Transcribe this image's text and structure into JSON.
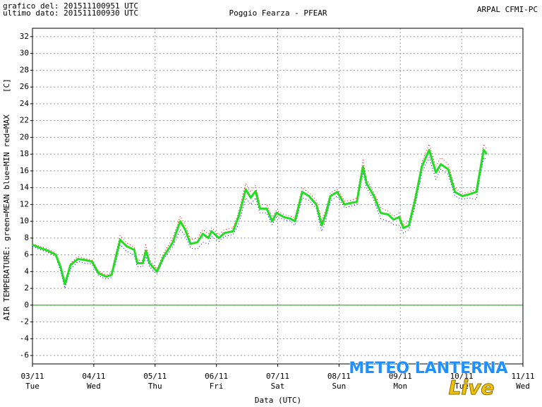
{
  "chart_data": {
    "type": "line",
    "header_left": [
      "grafico del: 201511100951 UTC",
      "ultimo dato: 201511100930 UTC"
    ],
    "title": "Poggio Fearza - PFEAR",
    "header_right": "ARPAL CFMI-PC",
    "unit_label": "[C]",
    "y_label": "AIR TEMPERATURE: green=MEAN  blue=MIN  red=MAX",
    "x_label": "Data (UTC)",
    "watermark": [
      "METEO LANTERNA",
      "Live"
    ],
    "xlim": [
      0,
      8
    ],
    "xticks": [
      {
        "value": 0,
        "label": "03/11"
      },
      {
        "value": 1,
        "label": "04/11"
      },
      {
        "value": 2,
        "label": "05/11"
      },
      {
        "value": 3,
        "label": "06/11"
      },
      {
        "value": 4,
        "label": "07/11"
      },
      {
        "value": 5,
        "label": "08/11"
      },
      {
        "value": 6,
        "label": "09/11"
      },
      {
        "value": 7,
        "label": "10/11"
      },
      {
        "value": 8,
        "label": "11/11"
      }
    ],
    "xtick_weekdays": [
      "Tue",
      "Wed",
      "Thu",
      "Fri",
      "Sat",
      "Sun",
      "Mon",
      "Tue",
      "Wed"
    ],
    "ylim": [
      -7,
      33
    ],
    "yticks": [
      -6,
      -4,
      -2,
      0,
      2,
      4,
      6,
      8,
      10,
      12,
      14,
      16,
      18,
      20,
      22,
      24,
      26,
      28,
      30,
      32
    ],
    "grid": true,
    "reference_line": {
      "value": 0,
      "color": "#00aa00"
    },
    "x": [
      0,
      0.13,
      0.25,
      0.38,
      0.46,
      0.53,
      0.62,
      0.74,
      0.85,
      0.97,
      1.08,
      1.2,
      1.29,
      1.37,
      1.43,
      1.54,
      1.66,
      1.71,
      1.8,
      1.85,
      1.91,
      2.03,
      2.14,
      2.29,
      2.41,
      2.49,
      2.58,
      2.69,
      2.78,
      2.87,
      2.92,
      3.04,
      3.13,
      3.27,
      3.36,
      3.48,
      3.56,
      3.64,
      3.71,
      3.82,
      3.91,
      3.98,
      4.1,
      4.21,
      4.28,
      4.4,
      4.51,
      4.63,
      4.72,
      4.79,
      4.86,
      4.97,
      5.09,
      5.2,
      5.29,
      5.39,
      5.45,
      5.57,
      5.68,
      5.8,
      5.89,
      5.98,
      6.05,
      6.14,
      6.24,
      6.35,
      6.47,
      6.58,
      6.66,
      6.78,
      6.89,
      7.01,
      7.12,
      7.24,
      7.3,
      7.36,
      7.41
    ],
    "series": [
      {
        "name": "MIN",
        "color": "#0000ff",
        "dashed": true,
        "width": 1,
        "values": [
          7.0,
          6.6,
          6.3,
          5.8,
          4.0,
          2.0,
          4.3,
          5.2,
          5.0,
          4.9,
          3.5,
          3.1,
          3.3,
          5.5,
          7.2,
          6.4,
          6.0,
          4.6,
          4.6,
          5.8,
          4.6,
          3.7,
          5.5,
          7.0,
          9.0,
          8.3,
          6.8,
          6.7,
          7.5,
          7.3,
          8.2,
          7.6,
          8.2,
          8.4,
          9.6,
          12.8,
          12.0,
          12.8,
          11.0,
          11.0,
          9.6,
          10.5,
          10.2,
          10.0,
          9.5,
          12.8,
          12.5,
          11.5,
          8.8,
          10.3,
          12.4,
          13.0,
          11.6,
          11.8,
          12.0,
          15.8,
          14.0,
          12.5,
          10.3,
          10.0,
          9.6,
          9.5,
          8.6,
          9.0,
          11.8,
          15.8,
          17.6,
          15.0,
          16.2,
          15.6,
          13.0,
          12.6,
          12.8,
          12.6,
          15.3,
          17.6,
          17.3
        ]
      },
      {
        "name": "MAX",
        "color": "#ff0000",
        "dashed": true,
        "width": 1,
        "values": [
          7.3,
          7.0,
          6.7,
          6.2,
          4.8,
          2.8,
          5.0,
          5.8,
          5.6,
          5.4,
          4.0,
          3.6,
          3.9,
          6.5,
          8.3,
          7.4,
          6.9,
          5.4,
          5.3,
          7.2,
          5.4,
          4.3,
          6.2,
          8.0,
          10.6,
          9.6,
          7.8,
          8.0,
          9.0,
          8.5,
          9.2,
          8.4,
          9.0,
          9.2,
          11.0,
          14.5,
          13.5,
          14.3,
          12.0,
          12.0,
          10.5,
          11.3,
          10.8,
          10.6,
          10.4,
          14.0,
          13.4,
          12.5,
          10.0,
          11.5,
          13.4,
          13.8,
          12.4,
          12.5,
          12.8,
          17.3,
          15.0,
          13.4,
          11.6,
          11.2,
          10.6,
          11.0,
          9.5,
          10.0,
          13.0,
          17.0,
          19.2,
          16.5,
          17.6,
          16.8,
          14.0,
          13.3,
          13.5,
          13.8,
          16.5,
          19.2,
          18.6
        ]
      },
      {
        "name": "MEAN",
        "color": "#22dd22",
        "dashed": false,
        "width": 3,
        "values": [
          7.2,
          6.8,
          6.5,
          6.0,
          4.5,
          2.5,
          4.8,
          5.5,
          5.4,
          5.2,
          3.8,
          3.4,
          3.6,
          6.0,
          7.8,
          7.0,
          6.6,
          5.0,
          5.0,
          6.5,
          5.0,
          4.0,
          5.8,
          7.5,
          10.0,
          9.0,
          7.3,
          7.5,
          8.5,
          8.0,
          8.8,
          8.0,
          8.6,
          8.8,
          10.5,
          13.8,
          12.8,
          13.6,
          11.5,
          11.5,
          10.0,
          11.0,
          10.5,
          10.3,
          10.0,
          13.5,
          13.0,
          12.0,
          9.5,
          11.0,
          13.0,
          13.5,
          12.0,
          12.2,
          12.3,
          16.5,
          14.5,
          13.0,
          11.0,
          10.8,
          10.2,
          10.5,
          9.2,
          9.5,
          12.5,
          16.5,
          18.5,
          15.8,
          16.8,
          16.2,
          13.5,
          13.0,
          13.2,
          13.5,
          16.0,
          18.5,
          18.0
        ]
      }
    ]
  }
}
